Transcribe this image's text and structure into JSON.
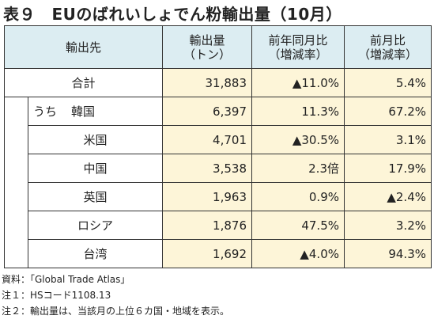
{
  "title": "表９　EUのばれいしょでん粉輸出量（10月）",
  "table": {
    "headers": [
      [
        "輸出先"
      ],
      [
        "輸出量",
        "（トン）"
      ],
      [
        "前年同月比",
        "（増減率）"
      ],
      [
        "前月比",
        "（増減率）"
      ]
    ],
    "total": {
      "label": "合計",
      "values": [
        "31,883",
        "▲11.0%",
        "5.4%"
      ]
    },
    "sub_label": "うち",
    "rows": [
      {
        "label": "韓国",
        "values": [
          "6,397",
          "11.3%",
          "67.2%"
        ]
      },
      {
        "label": "米国",
        "values": [
          "4,701",
          "▲30.5%",
          "3.1%"
        ]
      },
      {
        "label": "中国",
        "values": [
          "3,538",
          "2.3倍",
          "17.9%"
        ]
      },
      {
        "label": "英国",
        "values": [
          "1,963",
          "0.9%",
          "▲2.4%"
        ]
      },
      {
        "label": "ロシア",
        "values": [
          "1,876",
          "47.5%",
          "3.2%"
        ]
      },
      {
        "label": "台湾",
        "values": [
          "1,692",
          "▲4.0%",
          "94.3%"
        ]
      }
    ]
  },
  "notes": [
    "資料：「Global Trade Atlas」",
    "注１：HSコード1108.13",
    "注２：輸出量は、当該月の上位６カ国・地域を表示。"
  ]
}
